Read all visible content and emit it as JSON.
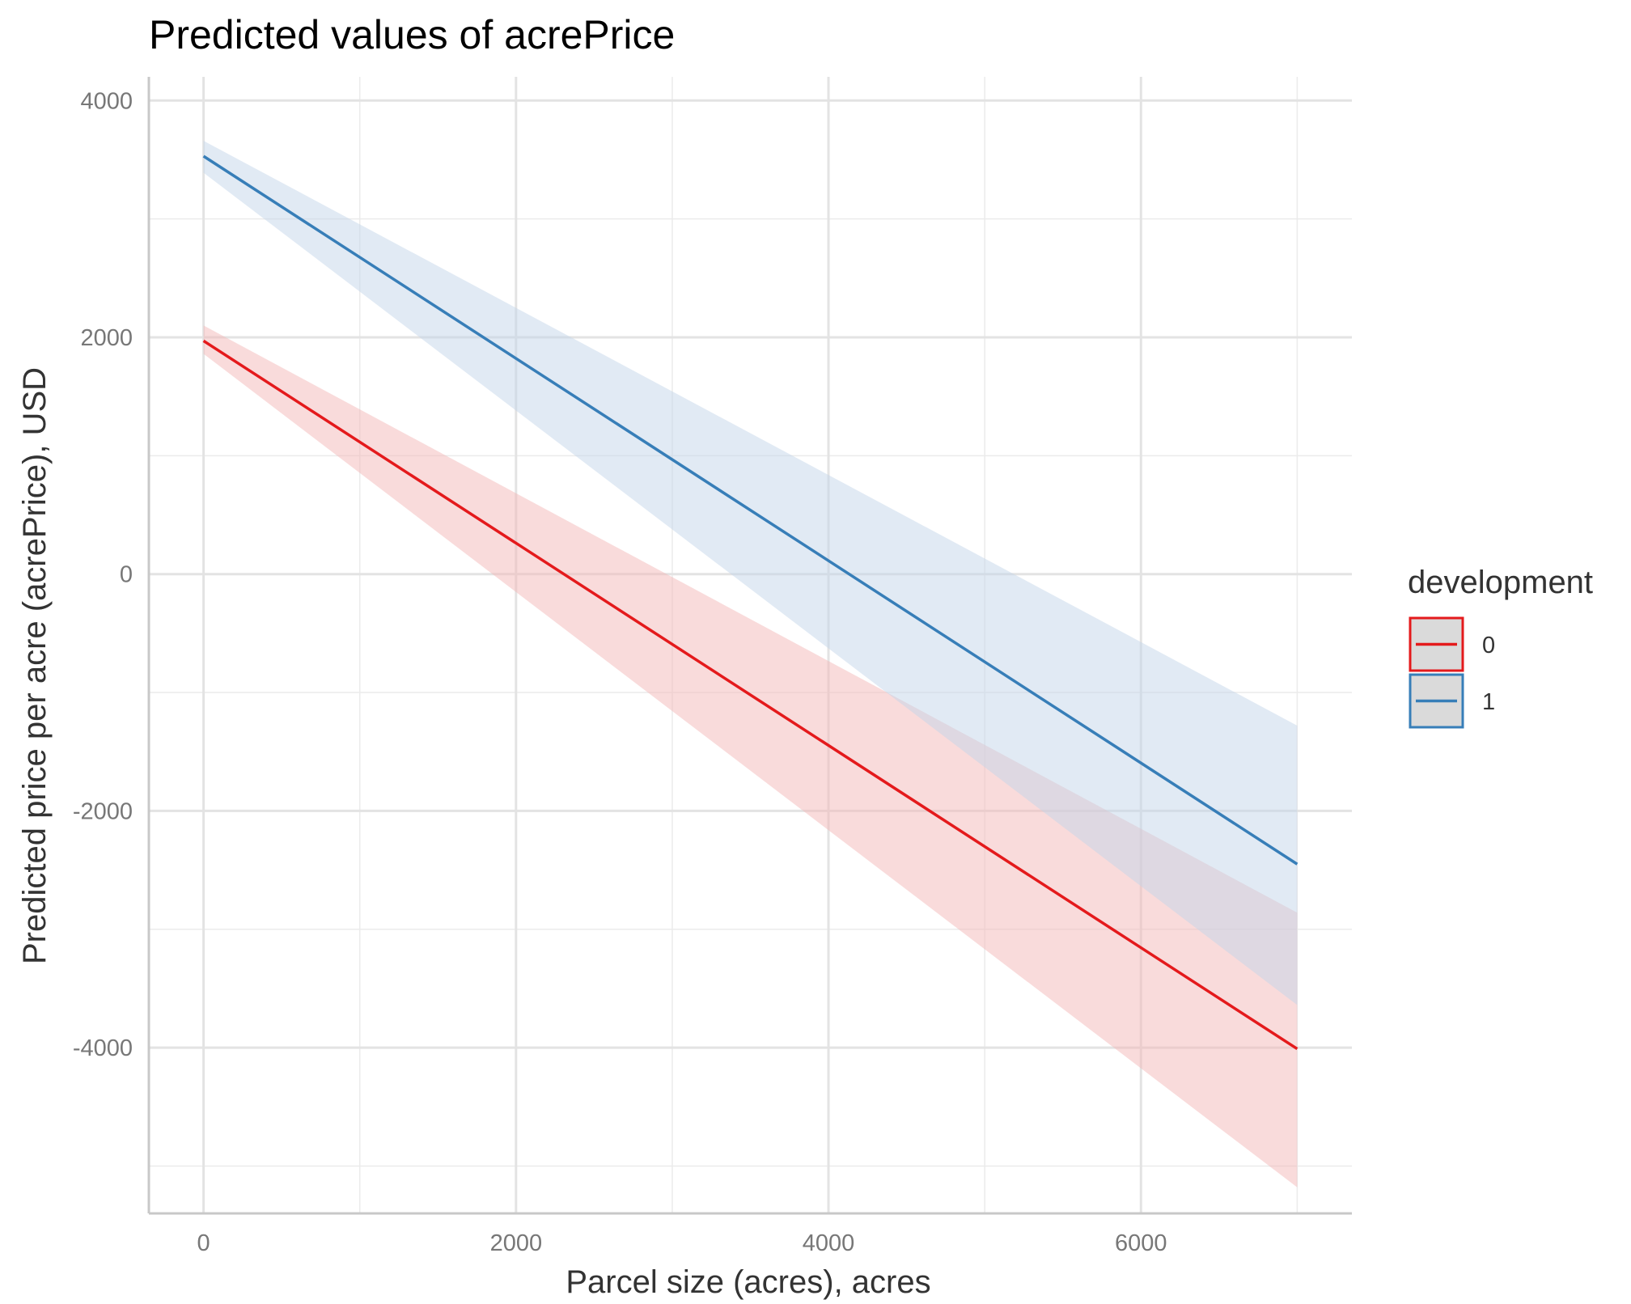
{
  "chart_data": {
    "type": "line",
    "title": "Predicted values of acrePrice",
    "xlabel": "Parcel size (acres), acres",
    "ylabel": "Predicted price per acre (acrePrice), USD",
    "xlim": [
      -350,
      7350
    ],
    "ylim": [
      -5400,
      4200
    ],
    "x_ticks": [
      0,
      2000,
      4000,
      6000
    ],
    "x_tick_labels": [
      "0",
      "2000",
      "4000",
      "6000"
    ],
    "y_ticks": [
      -4000,
      -2000,
      0,
      2000,
      4000
    ],
    "y_tick_labels": [
      "-4000",
      "-2000",
      "0",
      "2000",
      "4000"
    ],
    "x_minor_ticks": [
      1000,
      3000,
      5000,
      7000
    ],
    "y_minor_ticks": [
      -5000,
      -3000,
      -1000,
      1000,
      3000
    ],
    "grid": true,
    "legend": {
      "title": "development",
      "position": "right"
    },
    "series": [
      {
        "name": "0",
        "color": "#e41a1c",
        "fill": "#f4b7b8",
        "x": [
          0,
          7000
        ],
        "y": [
          1970,
          -4010
        ],
        "ci_low": [
          1860,
          -5180
        ],
        "ci_high": [
          2100,
          -2860
        ]
      },
      {
        "name": "1",
        "color": "#377eb8",
        "fill": "#c3d6ea",
        "x": [
          0,
          7000
        ],
        "y": [
          3530,
          -2450
        ],
        "ci_low": [
          3390,
          -3640
        ],
        "ci_high": [
          3660,
          -1280
        ]
      }
    ]
  }
}
